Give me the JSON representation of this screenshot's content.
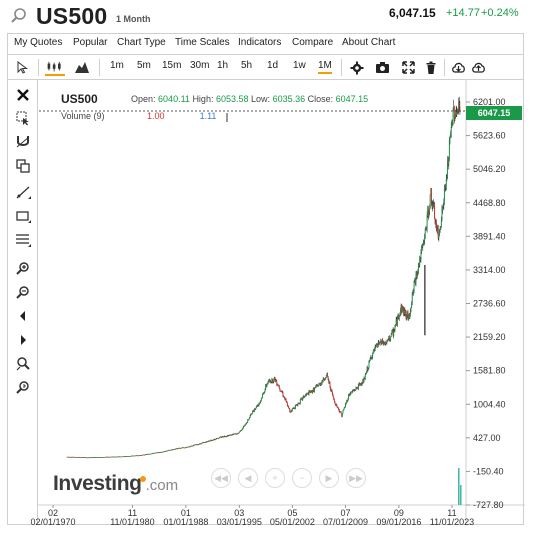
{
  "header": {
    "symbol": "US500",
    "period": "1 Month",
    "price": "6,047.15",
    "change": "+14.77",
    "change_pct": "+0.24%"
  },
  "menu": [
    "My Quotes",
    "Popular",
    "Chart Type",
    "Time Scales",
    "Indicators",
    "Compare",
    "About Chart"
  ],
  "toolbar": {
    "timeframes": [
      "1m",
      "5m",
      "15m",
      "30m",
      "1h",
      "5h",
      "1d",
      "1w",
      "1M"
    ],
    "active_timeframe": "1M"
  },
  "legend": {
    "symbol": "US500",
    "open_label": "Open:",
    "open": "6040.11",
    "high_label": "High:",
    "high": "6053.58",
    "low_label": "Low:",
    "low": "6035.36",
    "close_label": "Close:",
    "close": "6047.15",
    "volume_label": "Volume (9)",
    "volume_value_red": "1.00",
    "volume_value_blue": "1.11"
  },
  "last_price_tag": "6047.15",
  "logo": {
    "brand": "Investing",
    "domain": ".com"
  },
  "colors": {
    "up": "#1a9a48",
    "down": "#d33030",
    "accent": "#f0a000"
  },
  "chart_data": {
    "type": "candlestick",
    "ylim": [
      -727.8,
      6201.0
    ],
    "y_ticks": [
      "6201.00",
      "5623.60",
      "5046.20",
      "4468.80",
      "3891.40",
      "3314.00",
      "2736.60",
      "2159.20",
      "1581.80",
      "1004.40",
      "427.00",
      "-150.40",
      "-727.80"
    ],
    "x_ticks": [
      {
        "top": "02",
        "bottom": "02/01/1970"
      },
      {
        "top": "11",
        "bottom": "11/01/1980"
      },
      {
        "top": "01",
        "bottom": "01/01/1988"
      },
      {
        "top": "03",
        "bottom": "03/01/1995"
      },
      {
        "top": "05",
        "bottom": "05/01/2002"
      },
      {
        "top": "07",
        "bottom": "07/01/2009"
      },
      {
        "top": "09",
        "bottom": "09/01/2016"
      },
      {
        "top": "11",
        "bottom": "11/01/2023"
      }
    ],
    "series": [
      {
        "x": [
          1975,
          1978,
          1980,
          1982,
          1985,
          1987,
          1988,
          1990,
          1993,
          1995,
          1996,
          1997,
          1998,
          1999,
          2000,
          2001,
          2002,
          2003,
          2004,
          2005,
          2006,
          2007,
          2008,
          2009,
          2010,
          2011,
          2012,
          2013,
          2014,
          2015,
          2016,
          2017,
          2018,
          2019,
          2020,
          2021,
          2022,
          2023,
          2024
        ],
        "values": [
          90,
          100,
          110,
          130,
          190,
          250,
          260,
          330,
          450,
          500,
          650,
          880,
          1050,
          1380,
          1440,
          1200,
          880,
          1000,
          1150,
          1230,
          1350,
          1500,
          1050,
          820,
          1180,
          1280,
          1420,
          1840,
          2060,
          2050,
          2260,
          2670,
          2480,
          3220,
          3750,
          4600,
          3850,
          4750,
          6047
        ]
      }
    ]
  }
}
